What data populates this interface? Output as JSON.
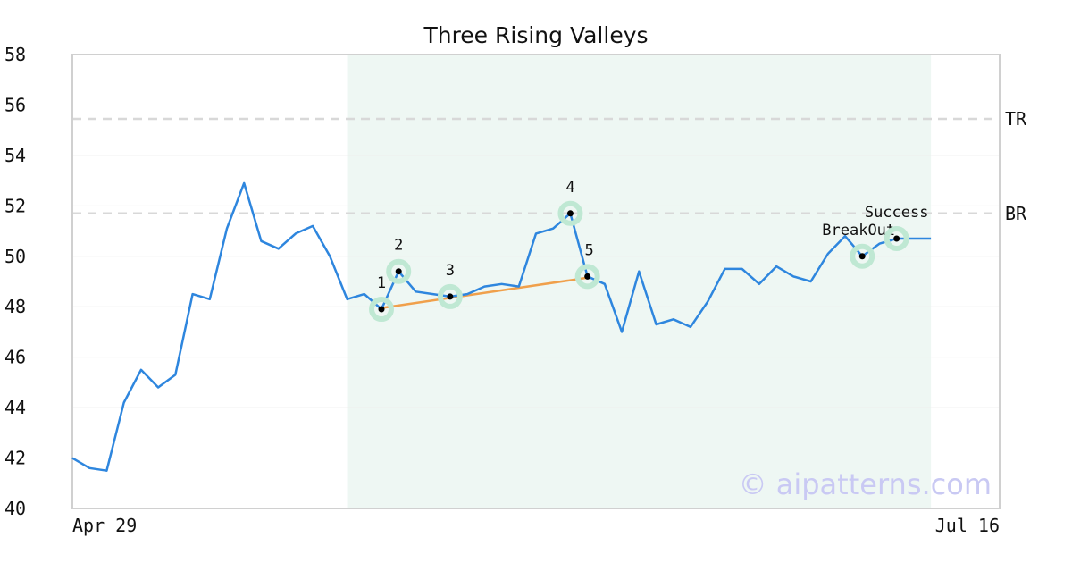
{
  "chart_data": {
    "type": "line",
    "title": "Three Rising Valleys",
    "xlabel": "",
    "ylabel": "",
    "ylim": [
      40,
      58
    ],
    "yticks": [
      40,
      42,
      44,
      46,
      48,
      50,
      52,
      54,
      56,
      58
    ],
    "x_tick_labels": [
      "Apr 29",
      "Jul 16"
    ],
    "grid": "horizontal",
    "colors": {
      "price": "#2e86de",
      "trendline": "#f0a04b",
      "highlight_region": "#eef7f3",
      "marker_halo": "#bfe8d3",
      "reference_lines": "#d8d8d8"
    },
    "series": [
      {
        "values": [
          42.0,
          41.6,
          41.5,
          44.2,
          45.5,
          44.8,
          45.3,
          48.5,
          48.3,
          51.1,
          52.9,
          50.6,
          50.3,
          50.9,
          51.2,
          50.0,
          48.3,
          48.5,
          47.9,
          49.4,
          48.6,
          48.5,
          48.4,
          48.5,
          48.8,
          48.9,
          48.8,
          50.9,
          51.1,
          51.7,
          49.2,
          48.9,
          47.0,
          49.4,
          47.3,
          47.5,
          47.2,
          48.2,
          49.5,
          49.5,
          48.9,
          49.6,
          49.2,
          49.0,
          50.1,
          50.8,
          50.0,
          50.5,
          50.7,
          50.7,
          50.7
        ]
      }
    ],
    "reference_lines": [
      {
        "label": "TR",
        "y": 55.45
      },
      {
        "label": "BR",
        "y": 51.7
      }
    ],
    "pattern_region": {
      "start_index": 16,
      "end_index": 50
    },
    "pattern_points": [
      {
        "label": "1",
        "index": 18,
        "y": 47.9
      },
      {
        "label": "2",
        "index": 19,
        "y": 49.4
      },
      {
        "label": "3",
        "index": 22,
        "y": 48.4
      },
      {
        "label": "4",
        "index": 29,
        "y": 51.7
      },
      {
        "label": "5",
        "index": 30,
        "y": 49.2
      },
      {
        "label": "BreakOut",
        "index": 46,
        "y": 50.0
      },
      {
        "label": "Success",
        "index": 48,
        "y": 50.7
      }
    ],
    "trendline": {
      "from_index": 18,
      "from_y": 47.95,
      "to_index": 30,
      "to_y": 49.15
    },
    "watermark": "© aipatterns.com"
  }
}
